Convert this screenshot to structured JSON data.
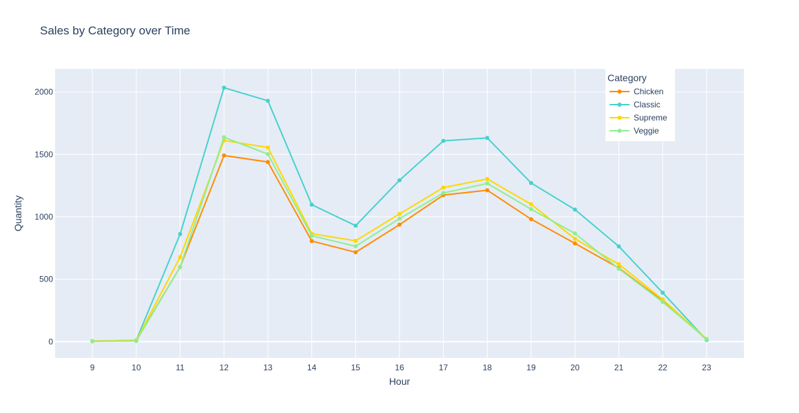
{
  "chart_data": {
    "type": "line",
    "title": "Sales by Category over Time",
    "xlabel": "Hour",
    "ylabel": "Quantity",
    "x": [
      9,
      10,
      11,
      12,
      13,
      14,
      15,
      16,
      17,
      18,
      19,
      20,
      21,
      22,
      23
    ],
    "xlim": [
      8.15,
      23.85
    ],
    "ylim": [
      -130,
      2185
    ],
    "yticks": [
      0,
      500,
      1000,
      1500,
      2000
    ],
    "grid": true,
    "plot_bgcolor": "#e5ecf6",
    "legend": {
      "title": "Category",
      "position": "top-right"
    },
    "series": [
      {
        "name": "Chicken",
        "color": "#ff8c00",
        "values": [
          4,
          9,
          598,
          1491,
          1439,
          806,
          716,
          937,
          1174,
          1213,
          981,
          787,
          590,
          327,
          18
        ]
      },
      {
        "name": "Classic",
        "color": "#48d1cc",
        "values": [
          5,
          11,
          862,
          2034,
          1929,
          1097,
          929,
          1293,
          1608,
          1632,
          1271,
          1058,
          763,
          392,
          14
        ]
      },
      {
        "name": "Supreme",
        "color": "#ffd700",
        "values": [
          6,
          10,
          677,
          1611,
          1555,
          865,
          808,
          1023,
          1234,
          1303,
          1101,
          824,
          620,
          338,
          22
        ]
      },
      {
        "name": "Veggie",
        "color": "#90ee90",
        "values": [
          3,
          6,
          598,
          1637,
          1502,
          848,
          764,
          985,
          1191,
          1267,
          1061,
          867,
          584,
          318,
          21
        ]
      }
    ]
  }
}
